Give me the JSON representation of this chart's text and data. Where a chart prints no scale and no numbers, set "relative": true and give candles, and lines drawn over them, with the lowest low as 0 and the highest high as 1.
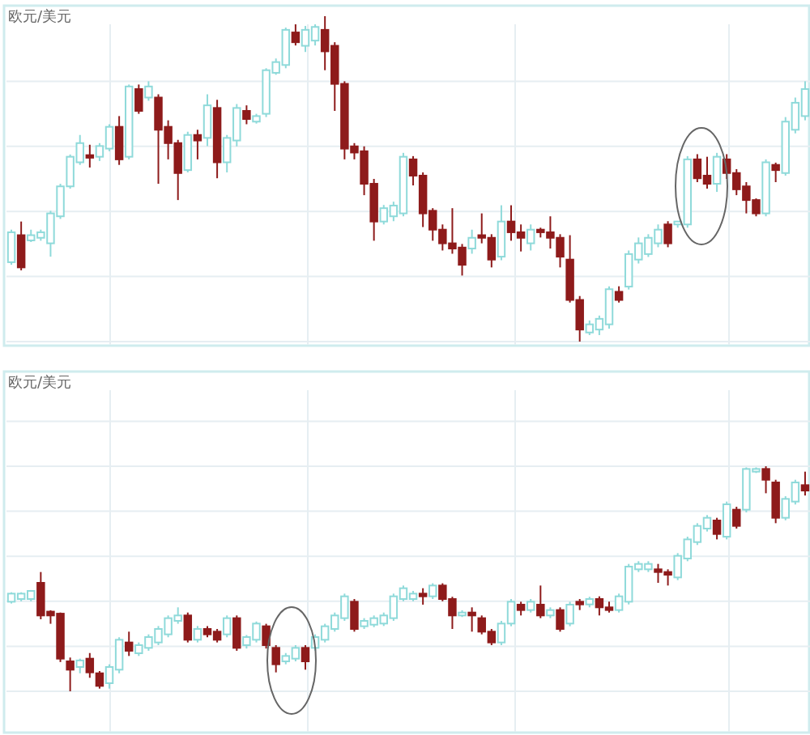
{
  "chart_data": [
    {
      "type": "candlestick",
      "title": "欧元/美元",
      "relative": true,
      "grid": true,
      "categories": [
        null,
        null,
        null,
        null,
        null,
        null,
        null,
        null,
        null,
        null,
        null,
        null,
        null,
        null,
        null,
        null,
        null,
        null,
        null,
        null,
        null,
        null,
        null,
        null,
        null,
        null,
        null,
        null,
        null,
        null,
        null,
        null,
        null,
        null,
        null,
        null,
        null,
        null,
        null,
        null,
        null,
        null,
        null,
        null,
        null,
        null,
        null,
        null,
        null,
        null,
        null,
        null,
        null,
        null,
        null,
        null,
        null,
        null,
        null,
        null,
        null,
        null,
        null,
        null,
        null,
        null,
        null,
        null,
        null,
        null,
        null,
        null,
        null,
        null,
        null,
        null,
        null,
        null,
        null,
        null,
        null,
        null
      ],
      "ohlc": [
        [
          0.244,
          0.344,
          0.236,
          0.336
        ],
        [
          0.327,
          0.369,
          0.219,
          0.228
        ],
        [
          0.311,
          0.344,
          0.306,
          0.327
        ],
        [
          0.319,
          0.344,
          0.31,
          0.336
        ],
        [
          0.302,
          0.402,
          0.261,
          0.394
        ],
        [
          0.385,
          0.485,
          0.377,
          0.477
        ],
        [
          0.477,
          0.575,
          0.47,
          0.568
        ],
        [
          0.551,
          0.635,
          0.543,
          0.61
        ],
        [
          0.573,
          0.605,
          0.535,
          0.565
        ],
        [
          0.568,
          0.61,
          0.555,
          0.601
        ],
        [
          0.593,
          0.668,
          0.585,
          0.66
        ],
        [
          0.66,
          0.693,
          0.543,
          0.56
        ],
        [
          0.568,
          0.79,
          0.56,
          0.784
        ],
        [
          0.776,
          0.79,
          0.7,
          0.709
        ],
        [
          0.75,
          0.8,
          0.74,
          0.784
        ],
        [
          0.75,
          0.76,
          0.485,
          0.651
        ],
        [
          0.66,
          0.68,
          0.56,
          0.61
        ],
        [
          0.61,
          0.62,
          0.435,
          0.518
        ],
        [
          0.527,
          0.645,
          0.52,
          0.635
        ],
        [
          0.635,
          0.651,
          0.56,
          0.618
        ],
        [
          0.626,
          0.76,
          0.601,
          0.726
        ],
        [
          0.718,
          0.743,
          0.502,
          0.551
        ],
        [
          0.551,
          0.635,
          0.52,
          0.626
        ],
        [
          0.618,
          0.73,
          0.6,
          0.718
        ],
        [
          0.709,
          0.726,
          0.668,
          0.684
        ],
        [
          0.676,
          0.7,
          0.67,
          0.693
        ],
        [
          0.7,
          0.84,
          0.69,
          0.834
        ],
        [
          0.826,
          0.87,
          0.82,
          0.859
        ],
        [
          0.85,
          0.965,
          0.84,
          0.958
        ],
        [
          0.95,
          0.975,
          0.91,
          0.92
        ],
        [
          0.909,
          0.97,
          0.89,
          0.958
        ],
        [
          0.925,
          0.975,
          0.91,
          0.967
        ],
        [
          0.958,
          1,
          0.834,
          0.892
        ],
        [
          0.909,
          0.92,
          0.709,
          0.792
        ],
        [
          0.792,
          0.8,
          0.56,
          0.593
        ],
        [
          0.6,
          0.61,
          0.56,
          0.581
        ],
        [
          0.585,
          0.6,
          0.45,
          0.485
        ],
        [
          0.485,
          0.5,
          0.31,
          0.369
        ],
        [
          0.369,
          0.42,
          0.36,
          0.41
        ],
        [
          0.385,
          0.43,
          0.37,
          0.418
        ],
        [
          0.394,
          0.58,
          0.385,
          0.568
        ],
        [
          0.56,
          0.57,
          0.48,
          0.51
        ],
        [
          0.51,
          0.52,
          0.352,
          0.394
        ],
        [
          0.402,
          0.41,
          0.31,
          0.344
        ],
        [
          0.344,
          0.36,
          0.28,
          0.302
        ],
        [
          0.302,
          0.41,
          0.27,
          0.286
        ],
        [
          0.289,
          0.3,
          0.203,
          0.236
        ],
        [
          0.286,
          0.344,
          0.27,
          0.319
        ],
        [
          0.327,
          0.394,
          0.302,
          0.319
        ],
        [
          0.319,
          0.33,
          0.228,
          0.252
        ],
        [
          0.261,
          0.419,
          0.25,
          0.369
        ],
        [
          0.369,
          0.419,
          0.31,
          0.336
        ],
        [
          0.336,
          0.36,
          0.277,
          0.319
        ],
        [
          0.302,
          0.36,
          0.28,
          0.344
        ],
        [
          0.344,
          0.35,
          0.32,
          0.336
        ],
        [
          0.336,
          0.385,
          0.286,
          0.319
        ],
        [
          0.319,
          0.33,
          0.228,
          0.261
        ],
        [
          0.252,
          0.327,
          0.12,
          0.128
        ],
        [
          0.128,
          0.14,
          0,
          0.037
        ],
        [
          0.028,
          0.065,
          0.02,
          0.053
        ],
        [
          0.037,
          0.08,
          0.02,
          0.07
        ],
        [
          0.053,
          0.17,
          0.04,
          0.161
        ],
        [
          0.153,
          0.17,
          0.12,
          0.128
        ],
        [
          0.169,
          0.28,
          0.16,
          0.269
        ],
        [
          0.252,
          0.32,
          0.24,
          0.302
        ],
        [
          0.269,
          0.33,
          0.26,
          0.319
        ],
        [
          0.302,
          0.36,
          0.29,
          0.344
        ],
        [
          0.36,
          0.37,
          0.29,
          0.302
        ],
        [
          0.36,
          0.37,
          0.35,
          0.369
        ],
        [
          0.36,
          0.57,
          0.35,
          0.56
        ],
        [
          0.56,
          0.576,
          0.49,
          0.502
        ],
        [
          0.51,
          0.568,
          0.47,
          0.485
        ],
        [
          0.485,
          0.58,
          0.46,
          0.568
        ],
        [
          0.56,
          0.576,
          0.5,
          0.518
        ],
        [
          0.518,
          0.53,
          0.45,
          0.468
        ],
        [
          0.477,
          0.49,
          0.394,
          0.435
        ],
        [
          0.435,
          0.44,
          0.385,
          0.394
        ],
        [
          0.394,
          0.56,
          0.385,
          0.551
        ],
        [
          0.543,
          0.55,
          0.49,
          0.527
        ],
        [
          0.518,
          0.69,
          0.51,
          0.676
        ],
        [
          0.651,
          0.75,
          0.64,
          0.734
        ],
        [
          0.693,
          0.8,
          0.68,
          0.776
        ]
      ]
    },
    {
      "type": "candlestick",
      "title": "欧元/美元",
      "relative": true,
      "grid": true,
      "categories": [
        null,
        null,
        null,
        null,
        null,
        null,
        null,
        null,
        null,
        null,
        null,
        null,
        null,
        null,
        null,
        null,
        null,
        null,
        null,
        null,
        null,
        null,
        null,
        null,
        null,
        null,
        null,
        null,
        null,
        null,
        null,
        null,
        null,
        null,
        null,
        null,
        null,
        null,
        null,
        null,
        null,
        null,
        null,
        null,
        null,
        null,
        null,
        null,
        null,
        null,
        null,
        null,
        null,
        null,
        null,
        null,
        null,
        null,
        null,
        null,
        null,
        null,
        null,
        null,
        null,
        null,
        null,
        null,
        null,
        null,
        null,
        null,
        null,
        null,
        null,
        null,
        null,
        null,
        null,
        null,
        null,
        null
      ],
      "ohlc": [
        [
          0.398,
          0.44,
          0.39,
          0.434
        ],
        [
          0.41,
          0.44,
          0.4,
          0.434
        ],
        [
          0.41,
          0.45,
          0.4,
          0.446
        ],
        [
          0.482,
          0.53,
          0.32,
          0.337
        ],
        [
          0.354,
          0.36,
          0.3,
          0.337
        ],
        [
          0.345,
          0.35,
          0.13,
          0.145
        ],
        [
          0.133,
          0.15,
          0,
          0.096
        ],
        [
          0.108,
          0.145,
          0.08,
          0.137
        ],
        [
          0.145,
          0.17,
          0.06,
          0.084
        ],
        [
          0.08,
          0.09,
          0.012,
          0.024
        ],
        [
          0.036,
          0.12,
          0.012,
          0.108
        ],
        [
          0.096,
          0.24,
          0.08,
          0.229
        ],
        [
          0.217,
          0.265,
          0.157,
          0.18
        ],
        [
          0.169,
          0.217,
          0.157,
          0.205
        ],
        [
          0.193,
          0.253,
          0.18,
          0.241
        ],
        [
          0.217,
          0.29,
          0.205,
          0.277
        ],
        [
          0.253,
          0.337,
          0.24,
          0.325
        ],
        [
          0.313,
          0.373,
          0.3,
          0.337
        ],
        [
          0.337,
          0.35,
          0.217,
          0.229
        ],
        [
          0.229,
          0.29,
          0.217,
          0.277
        ],
        [
          0.277,
          0.29,
          0.24,
          0.253
        ],
        [
          0.265,
          0.277,
          0.217,
          0.229
        ],
        [
          0.253,
          0.337,
          0.24,
          0.325
        ],
        [
          0.325,
          0.337,
          0.18,
          0.193
        ],
        [
          0.205,
          0.25,
          0.19,
          0.241
        ],
        [
          0.229,
          0.31,
          0.217,
          0.301
        ],
        [
          0.289,
          0.3,
          0.19,
          0.205
        ],
        [
          0.193,
          0.205,
          0.084,
          0.12
        ],
        [
          0.133,
          0.17,
          0.12,
          0.157
        ],
        [
          0.145,
          0.205,
          0.133,
          0.193
        ],
        [
          0.193,
          0.205,
          0.096,
          0.133
        ],
        [
          0.193,
          0.253,
          0.18,
          0.241
        ],
        [
          0.229,
          0.3,
          0.217,
          0.289
        ],
        [
          0.277,
          0.35,
          0.265,
          0.337
        ],
        [
          0.325,
          0.434,
          0.313,
          0.422
        ],
        [
          0.398,
          0.41,
          0.265,
          0.277
        ],
        [
          0.289,
          0.325,
          0.277,
          0.313
        ],
        [
          0.296,
          0.337,
          0.285,
          0.325
        ],
        [
          0.301,
          0.35,
          0.29,
          0.337
        ],
        [
          0.325,
          0.434,
          0.313,
          0.422
        ],
        [
          0.41,
          0.47,
          0.4,
          0.458
        ],
        [
          0.41,
          0.446,
          0.4,
          0.434
        ],
        [
          0.434,
          0.458,
          0.385,
          0.422
        ],
        [
          0.422,
          0.48,
          0.41,
          0.47
        ],
        [
          0.47,
          0.48,
          0.4,
          0.41
        ],
        [
          0.41,
          0.42,
          0.277,
          0.337
        ],
        [
          0.337,
          0.36,
          0.33,
          0.35
        ],
        [
          0.35,
          0.373,
          0.265,
          0.337
        ],
        [
          0.325,
          0.337,
          0.253,
          0.265
        ],
        [
          0.265,
          0.277,
          0.205,
          0.217
        ],
        [
          0.217,
          0.313,
          0.205,
          0.301
        ],
        [
          0.301,
          0.41,
          0.289,
          0.398
        ],
        [
          0.385,
          0.398,
          0.337,
          0.361
        ],
        [
          0.361,
          0.41,
          0.35,
          0.398
        ],
        [
          0.385,
          0.47,
          0.325,
          0.337
        ],
        [
          0.337,
          0.373,
          0.325,
          0.361
        ],
        [
          0.361,
          0.373,
          0.265,
          0.277
        ],
        [
          0.301,
          0.398,
          0.289,
          0.385
        ],
        [
          0.398,
          0.41,
          0.361,
          0.386
        ],
        [
          0.386,
          0.42,
          0.373,
          0.41
        ],
        [
          0.41,
          0.422,
          0.337,
          0.373
        ],
        [
          0.373,
          0.398,
          0.35,
          0.361
        ],
        [
          0.361,
          0.434,
          0.35,
          0.422
        ],
        [
          0.398,
          0.566,
          0.386,
          0.554
        ],
        [
          0.542,
          0.578,
          0.53,
          0.566
        ],
        [
          0.542,
          0.578,
          0.53,
          0.566
        ],
        [
          0.542,
          0.566,
          0.482,
          0.53
        ],
        [
          0.53,
          0.542,
          0.47,
          0.518
        ],
        [
          0.506,
          0.614,
          0.494,
          0.602
        ],
        [
          0.59,
          0.687,
          0.578,
          0.675
        ],
        [
          0.663,
          0.747,
          0.65,
          0.735
        ],
        [
          0.723,
          0.783,
          0.71,
          0.771
        ],
        [
          0.759,
          0.771,
          0.675,
          0.699
        ],
        [
          0.687,
          0.843,
          0.675,
          0.831
        ],
        [
          0.807,
          0.82,
          0.723,
          0.735
        ],
        [
          0.807,
          0.995,
          0.795,
          0.988
        ],
        [
          0.976,
          0.995,
          0.97,
          0.988
        ],
        [
          0.988,
          1,
          0.88,
          0.94
        ],
        [
          0.928,
          0.94,
          0.747,
          0.771
        ],
        [
          0.771,
          0.867,
          0.76,
          0.855
        ],
        [
          0.843,
          0.94,
          0.83,
          0.928
        ],
        [
          0.916,
          0.976,
          0.87,
          0.892
        ]
      ]
    }
  ]
}
